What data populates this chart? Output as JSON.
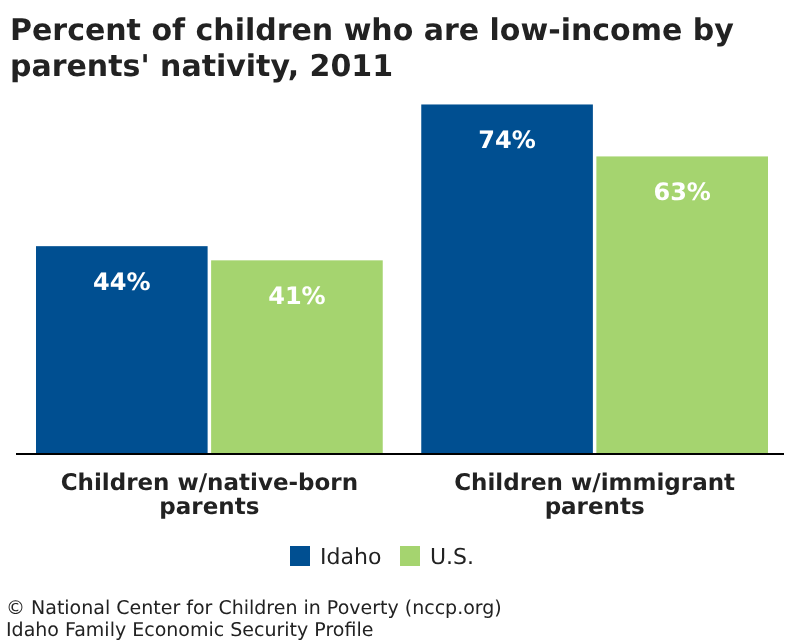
{
  "chart_data": {
    "type": "bar",
    "title": "Percent of children who are low-income by parents' nativity, 2011",
    "categories": [
      "Children w/native-born parents",
      "Children w/immigrant parents"
    ],
    "series": [
      {
        "name": "Idaho",
        "color": "#004f91",
        "values": [
          44,
          74
        ],
        "value_labels": [
          "44%",
          "74%"
        ]
      },
      {
        "name": "U.S.",
        "color": "#a5d46f",
        "values": [
          41,
          63
        ],
        "value_labels": [
          "41%",
          "63%"
        ]
      }
    ],
    "legend": "bottom",
    "annotations": [
      "© National Center for Children in Poverty (nccp.org)",
      "Idaho Family Economic Security Profile"
    ]
  }
}
